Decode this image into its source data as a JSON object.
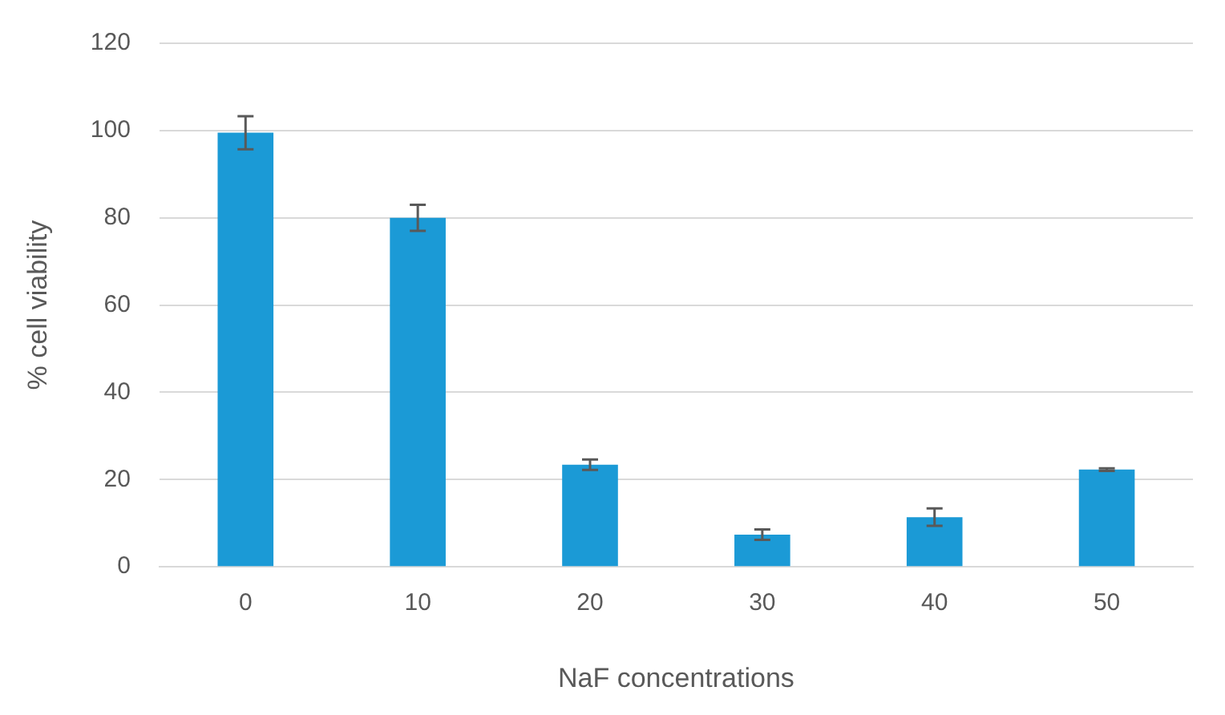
{
  "chart_data": {
    "type": "bar",
    "xlabel": "NaF concentrations",
    "ylabel": "% cell viability",
    "categories": [
      "0",
      "10",
      "20",
      "30",
      "40",
      "50"
    ],
    "values": [
      99.5,
      80,
      23.4,
      7.4,
      11.4,
      22.3
    ],
    "errors": [
      3.8,
      3,
      1.2,
      1.2,
      2,
      0.3
    ],
    "color": "#1b9ad6",
    "ylim": [
      0,
      120
    ],
    "yticks": [
      0,
      20,
      40,
      60,
      80,
      100,
      120
    ],
    "grid": "y",
    "legend": false
  }
}
